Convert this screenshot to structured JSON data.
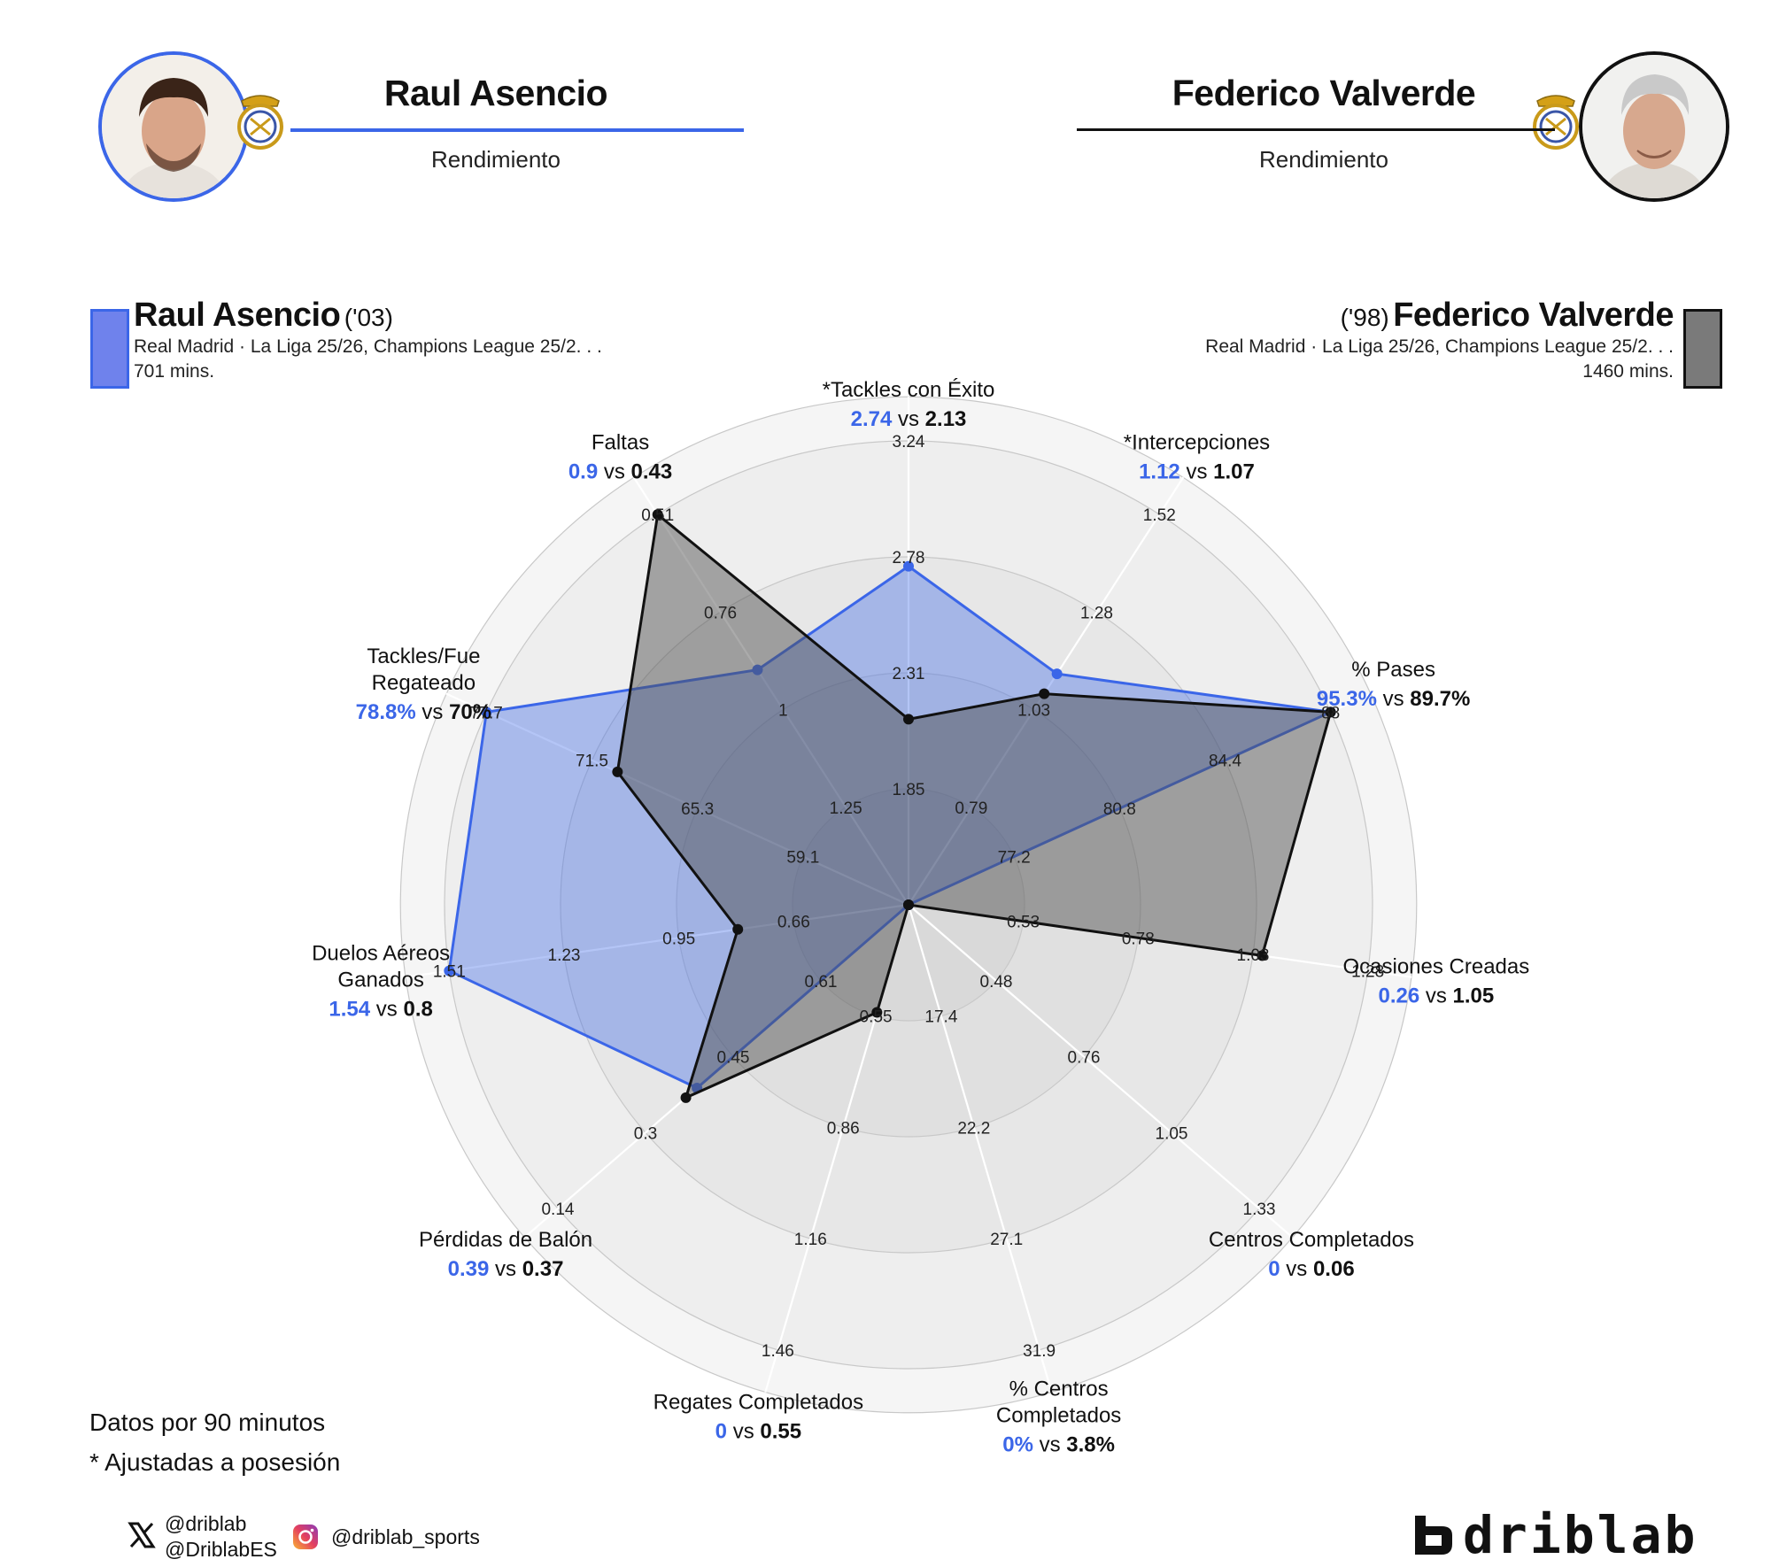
{
  "header": {
    "left": {
      "name": "Raul Asencio",
      "subtitle": "Rendimiento"
    },
    "right": {
      "name": "Federico Valverde",
      "subtitle": "Rendimiento"
    }
  },
  "players": [
    {
      "name": "Raul Asencio",
      "year": "('03)",
      "meta": "Real Madrid · La Liga 25/26, Champions League 25/2. . .",
      "minutes": "701 mins.",
      "color": "#3b66e8"
    },
    {
      "name": "Federico Valverde",
      "year": "('98)",
      "meta": "Real Madrid · La Liga 25/26, Champions League 25/2. . .",
      "minutes": "1460 mins.",
      "color": "#1a1a1a"
    }
  ],
  "notes": {
    "line1": "Datos por 90 minutos",
    "line2": "* Ajustadas a posesión"
  },
  "social": {
    "x_handle1": "@driblab",
    "x_handle2": "@DriblabES",
    "instagram": "@driblab_sports",
    "brand": "driblab"
  },
  "icons": [
    "x-logo-icon",
    "instagram-icon",
    "real-madrid-crest-icon",
    "driblab-logo-icon"
  ],
  "chart_data": {
    "type": "radar",
    "vs_label": "vs",
    "series": [
      {
        "name": "Raul Asencio",
        "color": "#3b66e8",
        "values": [
          2.74,
          1.12,
          95.3,
          0.26,
          0,
          0,
          0,
          0.39,
          1.54,
          78.8,
          0.9
        ]
      },
      {
        "name": "Federico Valverde",
        "color": "#1a1a1a",
        "values": [
          2.13,
          1.07,
          89.7,
          1.05,
          0.06,
          3.8,
          0.55,
          0.37,
          0.8,
          70,
          0.43
        ]
      }
    ],
    "axes": [
      {
        "label": [
          "*Tackles con Éxito"
        ],
        "v1": "2.74",
        "v2": "2.13",
        "range": [
          1.39,
          3.24
        ],
        "ticks": [
          "1.85",
          "2.31",
          "2.78",
          "3.24"
        ]
      },
      {
        "label": [
          "*Intercepciones"
        ],
        "v1": "1.12",
        "v2": "1.07",
        "range": [
          0.54,
          1.52
        ],
        "ticks": [
          "0.79",
          "1.03",
          "1.28",
          "1.52"
        ]
      },
      {
        "label": [
          "% Pases"
        ],
        "v1": "95.3%",
        "v2": "89.7%",
        "range": [
          73.6,
          88
        ],
        "ticks": [
          "77.2",
          "80.8",
          "84.4",
          "88"
        ]
      },
      {
        "label": [
          "Ocasiones Creadas"
        ],
        "v1": "0.26",
        "v2": "1.05",
        "range": [
          0.28,
          1.28
        ],
        "ticks": [
          "0.53",
          "0.78",
          "1.03",
          "1.28"
        ]
      },
      {
        "label": [
          "Centros Completados"
        ],
        "v1": "0",
        "v2": "0.06",
        "range": [
          0.19,
          1.33
        ],
        "ticks": [
          "0.48",
          "0.76",
          "1.05",
          "1.33"
        ]
      },
      {
        "label": [
          "% Centros",
          "Completados"
        ],
        "v1": "0%",
        "v2": "3.8%",
        "range": [
          12.7,
          31.9
        ],
        "ticks": [
          "17.4",
          "22.2",
          "27.1",
          "31.9"
        ]
      },
      {
        "label": [
          "Regates Completados"
        ],
        "v1": "0",
        "v2": "0.55",
        "range": [
          0.26,
          1.46
        ],
        "ticks": [
          "0.55",
          "0.86",
          "1.16",
          "1.46"
        ]
      },
      {
        "label": [
          "Pérdidas de Balón"
        ],
        "v1": "0.39",
        "v2": "0.37",
        "range": [
          0.77,
          0.14
        ],
        "ticks": [
          "0.61",
          "0.45",
          "0.3",
          "0.14"
        ]
      },
      {
        "label": [
          "Duelos Aéreos",
          "Ganados"
        ],
        "v1": "1.54",
        "v2": "0.8",
        "range": [
          0.38,
          1.51
        ],
        "ticks": [
          "0.66",
          "0.95",
          "1.23",
          "1.51"
        ]
      },
      {
        "label": [
          "Tackles/Fue",
          "Regateado"
        ],
        "v1": "78.8%",
        "v2": "70%",
        "range": [
          52.9,
          77.7
        ],
        "ticks": [
          "59.1",
          "65.3",
          "71.5",
          "77.7"
        ]
      },
      {
        "label": [
          "Faltas"
        ],
        "v1": "0.9",
        "v2": "0.43",
        "range": [
          1.49,
          0.51
        ],
        "ticks": [
          "1.25",
          "1",
          "0.76",
          "0.51"
        ]
      }
    ]
  }
}
